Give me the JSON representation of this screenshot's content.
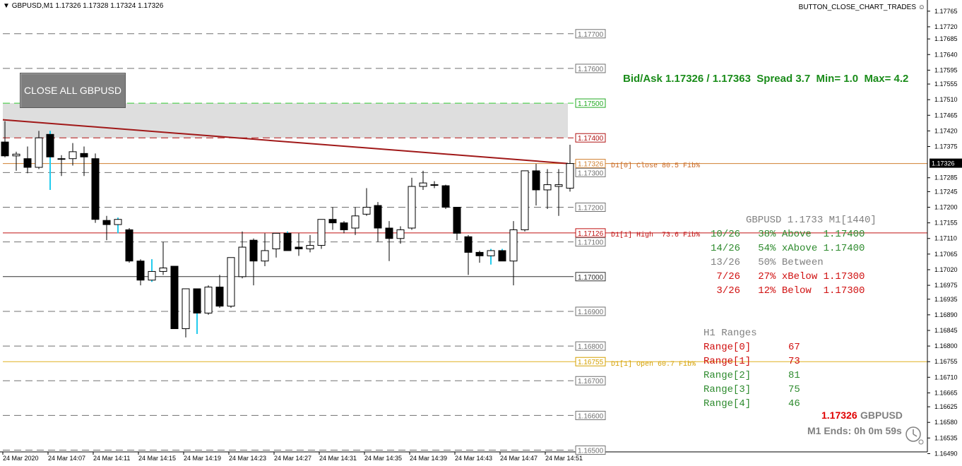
{
  "window": {
    "title": "GBPUSD,M1  1.17326 1.17328 1.17324 1.17326",
    "script_button": "BUTTON_CLOSE_CHART_TRADES"
  },
  "close_button": {
    "label": "CLOSE ALL GBPUSD"
  },
  "bid_ask": {
    "text": "Bid/Ask 1.17326 / 1.17363  Spread 3.7  Min= 1.0  Max= 4.2"
  },
  "levels": [
    {
      "price": 1.177,
      "label": "1.17700",
      "style": "gray"
    },
    {
      "price": 1.176,
      "label": "1.17600",
      "style": "gray"
    },
    {
      "price": 1.175,
      "label": "1.17500",
      "style": "green"
    },
    {
      "price": 1.174,
      "label": "1.17400",
      "style": "red"
    },
    {
      "price": 1.17326,
      "label": "1.17326",
      "style": "orange"
    },
    {
      "price": 1.173,
      "label": "1.17300",
      "style": "gray"
    },
    {
      "price": 1.172,
      "label": "1.17200",
      "style": "gray"
    },
    {
      "price": 1.17126,
      "label": "1.17126",
      "style": "darkred"
    },
    {
      "price": 1.171,
      "label": "1.17100",
      "style": "gray"
    },
    {
      "price": 1.17,
      "label": "1.17000",
      "style": "black"
    },
    {
      "price": 1.169,
      "label": "1.16900",
      "style": "gray"
    },
    {
      "price": 1.168,
      "label": "1.16800",
      "style": "gray"
    },
    {
      "price": 1.16755,
      "label": "1.16755",
      "style": "gold"
    },
    {
      "price": 1.167,
      "label": "1.16700",
      "style": "gray"
    },
    {
      "price": 1.166,
      "label": "1.16600",
      "style": "gray"
    },
    {
      "price": 1.165,
      "label": "1.16500",
      "style": "gray"
    }
  ],
  "level_notes": {
    "close": "D1[0] Close 80.5 Fib%",
    "high": "D1[1] High  73.6 Fib%",
    "open": "D1[1] Open 60.7 Fib%"
  },
  "stats": {
    "header": "GBPUSD 1.1733 M1[1440]",
    "rows": [
      {
        "text": "10/26   38% Above  1.17400",
        "color": "#2e8b2e"
      },
      {
        "text": "14/26   54% xAbove 1.17400",
        "color": "#2e8b2e"
      },
      {
        "text": "13/26   50% Between",
        "color": "#808080"
      },
      {
        "text": " 7/26   27% xBelow 1.17300",
        "color": "#d01010"
      },
      {
        "text": " 3/26   12% Below  1.17300",
        "color": "#d01010"
      }
    ]
  },
  "ranges": {
    "header": "H1 Ranges",
    "rows": [
      {
        "label": "Range[0]",
        "value": "67",
        "color": "#d01010"
      },
      {
        "label": "Range[1]",
        "value": "73",
        "color": "#d01010"
      },
      {
        "label": "Range[2]",
        "value": "81",
        "color": "#2e8b2e"
      },
      {
        "label": "Range[3]",
        "value": "75",
        "color": "#2e8b2e"
      },
      {
        "label": "Range[4]",
        "value": "46",
        "color": "#2e8b2e"
      }
    ]
  },
  "timer": {
    "price": "1.17326",
    "symbol": "GBPUSD",
    "ends": "M1 Ends: 0h 0m 59s"
  },
  "chart_data": {
    "type": "candlestick",
    "symbol": "GBPUSD",
    "timeframe": "M1",
    "ylim": [
      1.16495,
      1.17785
    ],
    "yticks": [
      "1.17765",
      "1.17720",
      "1.17685",
      "1.17640",
      "1.17595",
      "1.17555",
      "1.17510",
      "1.17465",
      "1.17420",
      "1.17375",
      "1.17326",
      "1.17285",
      "1.17245",
      "1.17200",
      "1.17155",
      "1.17110",
      "1.17065",
      "1.17020",
      "1.16975",
      "1.16935",
      "1.16890",
      "1.16845",
      "1.16800",
      "1.16755",
      "1.16710",
      "1.16665",
      "1.16625",
      "1.16580",
      "1.16535",
      "1.16490"
    ],
    "xticks": [
      "24 Mar 2020",
      "24 Mar 14:07",
      "24 Mar 14:11",
      "24 Mar 14:15",
      "24 Mar 14:19",
      "24 Mar 14:23",
      "24 Mar 14:27",
      "24 Mar 14:31",
      "24 Mar 14:35",
      "24 Mar 14:39",
      "24 Mar 14:43",
      "24 Mar 14:47",
      "24 Mar 14:51"
    ],
    "zone": {
      "from": 1.174,
      "to": 1.175
    },
    "trendline": {
      "from": 1.17452,
      "to": 1.17326
    },
    "candles": [
      [
        1.17388,
        1.17448,
        1.17344,
        1.17348
      ],
      [
        1.17348,
        1.1736,
        1.17305,
        1.17353
      ],
      [
        1.1734,
        1.17375,
        1.17298,
        1.17315
      ],
      [
        1.17315,
        1.1742,
        1.1731,
        1.174
      ],
      [
        1.1741,
        1.1742,
        1.1725,
        1.17345
      ],
      [
        1.1734,
        1.1735,
        1.1729,
        1.1734
      ],
      [
        1.1734,
        1.17385,
        1.1732,
        1.1736
      ],
      [
        1.17355,
        1.17375,
        1.1729,
        1.17345
      ],
      [
        1.1734,
        1.17355,
        1.17155,
        1.17165
      ],
      [
        1.17162,
        1.17175,
        1.17105,
        1.1715
      ],
      [
        1.1715,
        1.1717,
        1.17125,
        1.17165
      ],
      [
        1.17135,
        1.1714,
        1.1704,
        1.17045
      ],
      [
        1.17045,
        1.1705,
        1.16975,
        1.1699
      ],
      [
        1.1699,
        1.1705,
        1.16985,
        1.17015
      ],
      [
        1.17015,
        1.171,
        1.17005,
        1.17025
      ],
      [
        1.1703,
        1.1703,
        1.1685,
        1.1685
      ],
      [
        1.1685,
        1.16965,
        1.16825,
        1.16965
      ],
      [
        1.16965,
        1.16965,
        1.16835,
        1.16895
      ],
      [
        1.16895,
        1.16975,
        1.1689,
        1.1697
      ],
      [
        1.1697,
        1.17005,
        1.1691,
        1.16915
      ],
      [
        1.16915,
        1.17055,
        1.1691,
        1.17055
      ],
      [
        1.17,
        1.1713,
        1.16995,
        1.17085
      ],
      [
        1.17105,
        1.1711,
        1.16975,
        1.17045
      ],
      [
        1.17045,
        1.17125,
        1.1703,
        1.17075
      ],
      [
        1.1708,
        1.17125,
        1.17055,
        1.17125
      ],
      [
        1.17125,
        1.1713,
        1.17075,
        1.17075
      ],
      [
        1.17085,
        1.17125,
        1.1706,
        1.1708
      ],
      [
        1.1708,
        1.1712,
        1.1707,
        1.1709
      ],
      [
        1.1709,
        1.17165,
        1.1708,
        1.17165
      ],
      [
        1.17165,
        1.172,
        1.17135,
        1.17155
      ],
      [
        1.17155,
        1.1716,
        1.17125,
        1.17135
      ],
      [
        1.1714,
        1.172,
        1.1712,
        1.17175
      ],
      [
        1.1718,
        1.17255,
        1.17175,
        1.172
      ],
      [
        1.17205,
        1.17215,
        1.171,
        1.1714
      ],
      [
        1.1714,
        1.1716,
        1.17045,
        1.1711
      ],
      [
        1.1711,
        1.17145,
        1.17095,
        1.17135
      ],
      [
        1.1714,
        1.17285,
        1.17135,
        1.1726
      ],
      [
        1.1726,
        1.17305,
        1.1725,
        1.1727
      ],
      [
        1.17265,
        1.17275,
        1.17255,
        1.17265
      ],
      [
        1.17262,
        1.17265,
        1.17195,
        1.172
      ],
      [
        1.172,
        1.172,
        1.17105,
        1.17125
      ],
      [
        1.17115,
        1.1712,
        1.17005,
        1.1707
      ],
      [
        1.1707,
        1.17075,
        1.1704,
        1.1706
      ],
      [
        1.1706,
        1.1708,
        1.17035,
        1.17075
      ],
      [
        1.17075,
        1.1708,
        1.17045,
        1.17045
      ],
      [
        1.17045,
        1.1716,
        1.16975,
        1.17135
      ],
      [
        1.17135,
        1.17305,
        1.1713,
        1.17305
      ],
      [
        1.17305,
        1.17325,
        1.17205,
        1.1725
      ],
      [
        1.1725,
        1.1731,
        1.17195,
        1.17265
      ],
      [
        1.1726,
        1.1731,
        1.17175,
        1.17265
      ],
      [
        1.17255,
        1.1738,
        1.17245,
        1.17326
      ]
    ]
  }
}
